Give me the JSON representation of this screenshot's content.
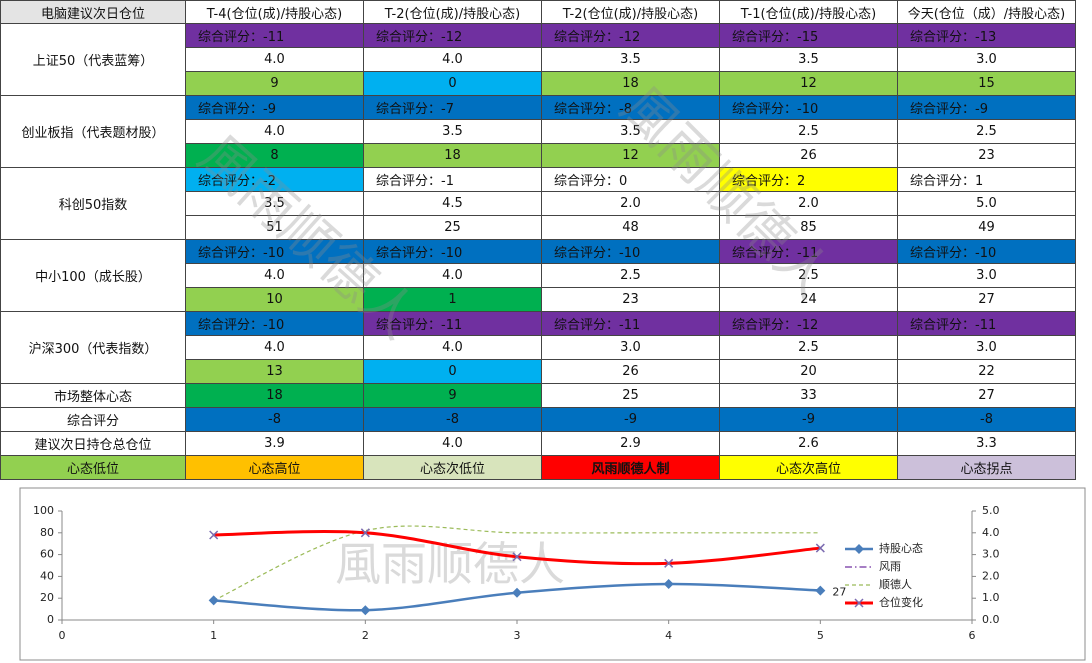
{
  "watermark": "風雨顺德人",
  "table": {
    "header": [
      "电脑建议次日仓位",
      "T-4(仓位(成)/持股心态)",
      "T-2(仓位(成)/持股心态)",
      "T-2(仓位(成)/持股心态)",
      "T-1(仓位(成)/持股心态)",
      "今天(仓位（成）/持股心态)"
    ],
    "groups": [
      {
        "label": "上证50（代表蓝筹）",
        "rows": [
          [
            {
              "text": "综合评分：-11",
              "color": "#7030a0"
            },
            {
              "text": "综合评分：-12",
              "color": "#7030a0"
            },
            {
              "text": "综合评分：-12",
              "color": "#7030a0"
            },
            {
              "text": "综合评分：-15",
              "color": "#7030a0"
            },
            {
              "text": "综合评分：-13",
              "color": "#7030a0"
            }
          ],
          [
            {
              "text": "4.0"
            },
            {
              "text": "4.0"
            },
            {
              "text": "3.5"
            },
            {
              "text": "3.5"
            },
            {
              "text": "3.0"
            }
          ],
          [
            {
              "text": "9",
              "color": "#92d050"
            },
            {
              "text": "0",
              "color": "#00b0f0"
            },
            {
              "text": "18",
              "color": "#92d050"
            },
            {
              "text": "12",
              "color": "#92d050"
            },
            {
              "text": "15",
              "color": "#92d050"
            }
          ]
        ]
      },
      {
        "label": "创业板指（代表题材股）",
        "rows": [
          [
            {
              "text": "综合评分：-9",
              "color": "#0070c0"
            },
            {
              "text": "综合评分：-7",
              "color": "#0070c0"
            },
            {
              "text": "综合评分：-8",
              "color": "#0070c0"
            },
            {
              "text": "综合评分：-10",
              "color": "#0070c0"
            },
            {
              "text": "综合评分：-9",
              "color": "#0070c0"
            }
          ],
          [
            {
              "text": "4.0"
            },
            {
              "text": "3.5"
            },
            {
              "text": "3.5"
            },
            {
              "text": "2.5"
            },
            {
              "text": "2.5"
            }
          ],
          [
            {
              "text": "8",
              "color": "#00b050"
            },
            {
              "text": "18",
              "color": "#92d050"
            },
            {
              "text": "12",
              "color": "#92d050"
            },
            {
              "text": "26"
            },
            {
              "text": "23"
            }
          ]
        ]
      },
      {
        "label": "科创50指数",
        "rows": [
          [
            {
              "text": "综合评分：-2",
              "color": "#00b0f0"
            },
            {
              "text": "综合评分：-1"
            },
            {
              "text": "综合评分：0"
            },
            {
              "text": "综合评分：2",
              "color": "#ffff00"
            },
            {
              "text": "综合评分：1"
            }
          ],
          [
            {
              "text": "3.5"
            },
            {
              "text": "4.5"
            },
            {
              "text": "2.0"
            },
            {
              "text": "2.0"
            },
            {
              "text": "5.0"
            }
          ],
          [
            {
              "text": "51"
            },
            {
              "text": "25"
            },
            {
              "text": "48"
            },
            {
              "text": "85"
            },
            {
              "text": "49"
            }
          ]
        ]
      },
      {
        "label": "中小100（成长股）",
        "rows": [
          [
            {
              "text": "综合评分：-10",
              "color": "#0070c0"
            },
            {
              "text": "综合评分：-10",
              "color": "#0070c0"
            },
            {
              "text": "综合评分：-10",
              "color": "#0070c0"
            },
            {
              "text": "综合评分：-11",
              "color": "#7030a0"
            },
            {
              "text": "综合评分：-10",
              "color": "#0070c0"
            }
          ],
          [
            {
              "text": "4.0"
            },
            {
              "text": "4.0"
            },
            {
              "text": "2.5"
            },
            {
              "text": "2.5"
            },
            {
              "text": "3.0"
            }
          ],
          [
            {
              "text": "10",
              "color": "#92d050"
            },
            {
              "text": "1",
              "color": "#00b050"
            },
            {
              "text": "23"
            },
            {
              "text": "24"
            },
            {
              "text": "27"
            }
          ]
        ]
      },
      {
        "label": "沪深300（代表指数）",
        "rows": [
          [
            {
              "text": "综合评分：-10",
              "color": "#0070c0"
            },
            {
              "text": "综合评分：-11",
              "color": "#7030a0"
            },
            {
              "text": "综合评分：-11",
              "color": "#7030a0"
            },
            {
              "text": "综合评分：-12",
              "color": "#7030a0"
            },
            {
              "text": "综合评分：-11",
              "color": "#7030a0"
            }
          ],
          [
            {
              "text": "4.0"
            },
            {
              "text": "4.0"
            },
            {
              "text": "3.0"
            },
            {
              "text": "2.5"
            },
            {
              "text": "3.0"
            }
          ],
          [
            {
              "text": "13",
              "color": "#92d050"
            },
            {
              "text": "0",
              "color": "#00b0f0"
            },
            {
              "text": "26"
            },
            {
              "text": "20"
            },
            {
              "text": "22"
            }
          ]
        ]
      }
    ],
    "summary": [
      {
        "label": "市场整体心态",
        "cells": [
          {
            "text": "18",
            "color": "#00b050"
          },
          {
            "text": "9",
            "color": "#00b050"
          },
          {
            "text": "25"
          },
          {
            "text": "33"
          },
          {
            "text": "27"
          }
        ]
      },
      {
        "label": "综合评分",
        "cells": [
          {
            "text": "-8",
            "color": "#0070c0"
          },
          {
            "text": "-8",
            "color": "#0070c0"
          },
          {
            "text": "-9",
            "color": "#0070c0"
          },
          {
            "text": "-9",
            "color": "#0070c0"
          },
          {
            "text": "-8",
            "color": "#0070c0"
          }
        ]
      },
      {
        "label": "建议次日持仓总仓位",
        "cells": [
          {
            "text": "3.9"
          },
          {
            "text": "4.0"
          },
          {
            "text": "2.9"
          },
          {
            "text": "2.6"
          },
          {
            "text": "3.3"
          }
        ]
      }
    ],
    "legend": [
      {
        "text": "心态低位",
        "color": "#92d050"
      },
      {
        "text": "心态高位",
        "color": "#ffc000"
      },
      {
        "text": "心态次低位",
        "color": "#d8e4bc"
      },
      {
        "text": "风雨顺德人制",
        "color": "#ff0000"
      },
      {
        "text": "心态次高位",
        "color": "#ffff00"
      },
      {
        "text": "心态拐点",
        "color": "#ccc0da"
      }
    ]
  },
  "chart_data": {
    "type": "line",
    "x": [
      1,
      2,
      3,
      4,
      5
    ],
    "xlim": [
      0,
      6
    ],
    "xticks": [
      0,
      1,
      2,
      3,
      4,
      5,
      6
    ],
    "ylim": [
      0,
      100
    ],
    "yticks": [
      0,
      20,
      40,
      60,
      80,
      100
    ],
    "y2lim": [
      0,
      5
    ],
    "y2ticks": [
      {
        "value": 0,
        "label": "0.0"
      },
      {
        "value": 1,
        "label": "1.0"
      },
      {
        "value": 2,
        "label": "2.0"
      },
      {
        "value": 3,
        "label": "3.0"
      },
      {
        "value": 4,
        "label": "4.0"
      },
      {
        "value": 5,
        "label": "5.0"
      }
    ],
    "series": [
      {
        "name": "持股心态",
        "color": "#4a7ebb",
        "values": [
          18,
          9,
          25,
          33,
          27
        ],
        "data_labels": [
          false,
          false,
          false,
          false,
          true
        ]
      },
      {
        "name": "风雨",
        "color": "#7030a0",
        "axis": "y2",
        "values": [
          3.9,
          4.0,
          2.9,
          2.6,
          3.3
        ]
      },
      {
        "name": "顺德人",
        "color": "#9bbb59",
        "axis": "y2",
        "values": [
          0.9,
          4.1,
          4.0,
          4.0,
          4.0
        ]
      },
      {
        "name": "仓位变化",
        "color": "#ff0000",
        "axis": "y2",
        "values": [
          3.9,
          4.0,
          2.9,
          2.6,
          3.3
        ]
      }
    ]
  }
}
